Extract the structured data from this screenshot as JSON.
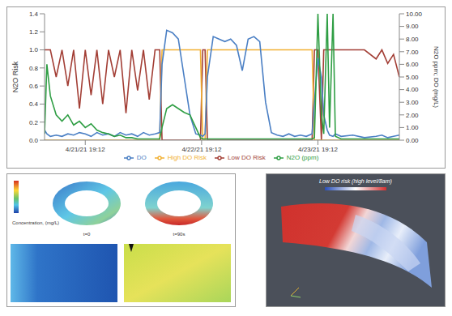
{
  "chart_data": {
    "type": "line",
    "x": [
      -0.35,
      -0.33,
      -0.3,
      -0.25,
      -0.2,
      -0.15,
      -0.1,
      -0.05,
      0.0,
      0.05,
      0.1,
      0.15,
      0.2,
      0.25,
      0.3,
      0.35,
      0.4,
      0.45,
      0.5,
      0.55,
      0.6,
      0.64,
      0.66,
      0.7,
      0.75,
      0.8,
      0.85,
      0.9,
      0.95,
      0.99,
      1.01,
      1.03,
      1.05,
      1.1,
      1.15,
      1.2,
      1.25,
      1.3,
      1.35,
      1.4,
      1.45,
      1.5,
      1.55,
      1.6,
      1.65,
      1.7,
      1.75,
      1.8,
      1.85,
      1.9,
      1.95,
      1.97,
      2.0,
      2.03,
      2.05,
      2.08,
      2.1,
      2.13,
      2.15,
      2.2,
      2.3,
      2.4,
      2.5,
      2.55,
      2.6,
      2.65,
      2.7
    ],
    "xlim": [
      -0.35,
      2.7
    ],
    "xticks": [
      {
        "value": 0,
        "label": "4/21/21 19:12"
      },
      {
        "value": 1,
        "label": "4/22/21 19:12"
      },
      {
        "value": 2,
        "label": "4/23/21 19:12"
      }
    ],
    "y_label": "N2O Risk",
    "ylim": [
      0,
      1.4
    ],
    "yticks": [
      {
        "value": 0,
        "label": "0.0"
      },
      {
        "value": 0.2,
        "label": "0.2"
      },
      {
        "value": 0.4,
        "label": "0.4"
      },
      {
        "value": 0.6,
        "label": "0.6"
      },
      {
        "value": 0.8,
        "label": "0.8"
      },
      {
        "value": 1,
        "label": "1.0"
      },
      {
        "value": 1.2,
        "label": "1.2"
      },
      {
        "value": 1.4,
        "label": "1.4"
      }
    ],
    "y2_label": "N2O ppm; DO (mg/L)",
    "y2lim": [
      0,
      10
    ],
    "y2ticks": [
      {
        "value": 0,
        "label": "0.00"
      },
      {
        "value": 1,
        "label": "1.00"
      },
      {
        "value": 2,
        "label": "2.00"
      },
      {
        "value": 3,
        "label": "3.00"
      },
      {
        "value": 4,
        "label": "4.00"
      },
      {
        "value": 5,
        "label": "5.00"
      },
      {
        "value": 6,
        "label": "6.00"
      },
      {
        "value": 7,
        "label": "7.00"
      },
      {
        "value": 8,
        "label": "8.00"
      },
      {
        "value": 9,
        "label": "9.00"
      },
      {
        "value": 10,
        "label": "10.00"
      }
    ],
    "grid": false,
    "legend": "bottom",
    "series": [
      {
        "name": "Low DO Risk",
        "color": "#a33f36",
        "values": [
          1.0,
          1.0,
          1.0,
          0.7,
          1.0,
          0.6,
          1.0,
          0.35,
          1.0,
          0.5,
          1.0,
          0.4,
          1.0,
          0.7,
          1.0,
          0.3,
          1.0,
          0.55,
          1.0,
          0.45,
          1.0,
          1.0,
          0.0,
          0.0,
          0.0,
          0.0,
          0.0,
          0.0,
          0.0,
          0.0,
          1.0,
          1.0,
          0.0,
          0.0,
          0.0,
          0.0,
          0.0,
          0.0,
          0.0,
          0.0,
          0.0,
          0.0,
          0.0,
          0.0,
          0.0,
          0.0,
          0.0,
          0.0,
          0.0,
          0.0,
          0.0,
          1.0,
          1.0,
          0.0,
          1.0,
          1.0,
          1.0,
          1.0,
          1.0,
          1.0,
          1.0,
          1.0,
          0.9,
          1.0,
          0.85,
          0.95,
          0.7
        ]
      },
      {
        "name": "High DO Risk",
        "color": "#f2b134",
        "values": [
          0,
          0,
          0,
          0,
          0,
          0,
          0,
          0,
          0,
          0,
          0,
          0,
          0,
          0,
          0,
          0,
          0,
          0,
          0,
          0,
          0,
          0,
          1,
          1,
          1,
          1,
          1,
          1,
          1,
          1,
          0,
          0,
          1,
          1,
          1,
          1,
          1,
          1,
          1,
          1,
          1,
          1,
          1,
          1,
          1,
          1,
          1,
          1,
          1,
          1,
          1,
          0,
          0,
          0,
          0,
          0,
          0,
          0,
          0,
          0,
          0,
          0,
          0,
          0,
          0,
          0,
          0
        ]
      },
      {
        "name": "DO",
        "color": "#4a7fc4",
        "axis": "y2",
        "values": [
          0.8,
          0.5,
          0.3,
          0.4,
          0.3,
          0.5,
          0.4,
          0.6,
          0.5,
          0.3,
          0.6,
          0.4,
          0.5,
          0.3,
          0.6,
          0.4,
          0.5,
          0.3,
          0.6,
          0.4,
          0.5,
          0.6,
          6.0,
          8.7,
          8.5,
          8.0,
          5.0,
          2.0,
          0.5,
          0.4,
          0.3,
          0.5,
          5.0,
          8.2,
          8.0,
          7.8,
          8.0,
          7.5,
          5.5,
          8.0,
          8.2,
          7.8,
          3.0,
          0.6,
          0.4,
          0.3,
          0.5,
          0.3,
          0.4,
          0.3,
          0.5,
          3.0,
          6.5,
          5.0,
          2.0,
          0.8,
          0.4,
          0.3,
          0.5,
          0.3,
          0.4,
          0.2,
          0.3,
          0.4,
          0.2,
          0.3,
          0.4
        ]
      },
      {
        "name": "N2O (ppm)",
        "color": "#2f9e44",
        "axis": "y2",
        "values": [
          0.5,
          6.0,
          3.5,
          2.0,
          1.5,
          2.0,
          1.2,
          1.5,
          1.0,
          1.3,
          0.8,
          0.6,
          0.5,
          0.3,
          0.4,
          0.2,
          0.2,
          0.1,
          0.1,
          0.1,
          0.1,
          0.1,
          1.0,
          2.5,
          2.8,
          2.5,
          2.2,
          2.0,
          1.0,
          0.2,
          0.1,
          0.1,
          0.1,
          0.1,
          0.1,
          0.1,
          0.1,
          0.1,
          0.1,
          0.1,
          0.1,
          0.1,
          0.1,
          0.1,
          0.1,
          0.1,
          0.1,
          0.1,
          0.1,
          0.1,
          0.1,
          0.2,
          10.0,
          2.0,
          0.5,
          10.0,
          1.0,
          10.0,
          0.3,
          0.1,
          0.1,
          0.1,
          0.1,
          0.1,
          0.1,
          0.1,
          0.1
        ]
      }
    ]
  },
  "images": {
    "rings": {
      "colorbar_label": "Concentration, (mg/L)",
      "labels": [
        "t=0",
        "t=90s"
      ]
    },
    "plume": {
      "title": "Low DO risk (high level/8am)"
    }
  }
}
